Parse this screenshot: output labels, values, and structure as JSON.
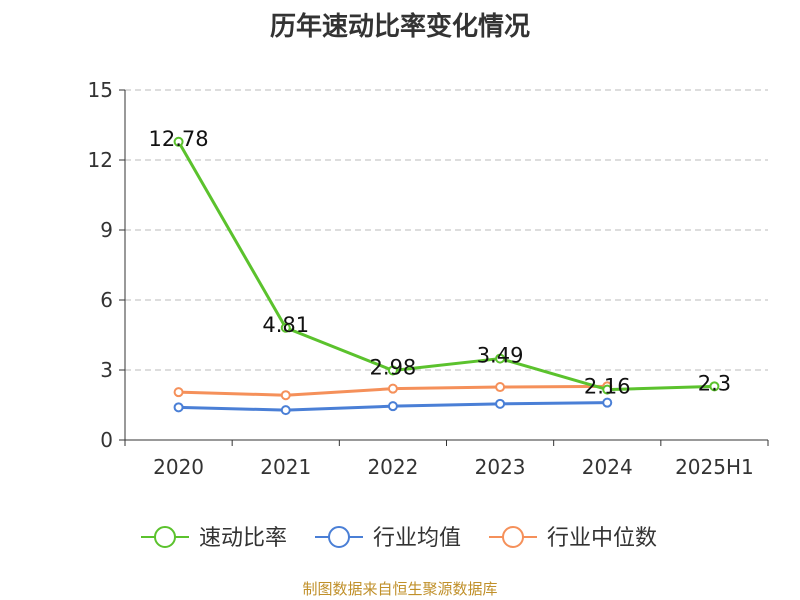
{
  "chart_data": {
    "type": "line",
    "title": "历年速动比率变化情况",
    "categories": [
      "2020",
      "2021",
      "2022",
      "2023",
      "2024",
      "2025H1"
    ],
    "ylim": [
      0,
      15
    ],
    "yticks": [
      0,
      3,
      6,
      9,
      12,
      15
    ],
    "grid": true,
    "legend_position": "bottom",
    "series": [
      {
        "name": "速动比率",
        "color": "#5bc22d",
        "values": [
          12.78,
          4.81,
          2.98,
          3.49,
          2.16,
          2.3
        ],
        "labels": [
          "12.78",
          "4.81",
          "2.98",
          "3.49",
          "2.16",
          "2.3"
        ]
      },
      {
        "name": "行业均值",
        "color": "#4a7fd6",
        "values": [
          1.4,
          1.28,
          1.45,
          1.55,
          1.6,
          null
        ]
      },
      {
        "name": "行业中位数",
        "color": "#f5905a",
        "values": [
          2.05,
          1.92,
          2.2,
          2.27,
          2.3,
          null
        ]
      }
    ]
  },
  "source_note": "制图数据来自恒生聚源数据库"
}
